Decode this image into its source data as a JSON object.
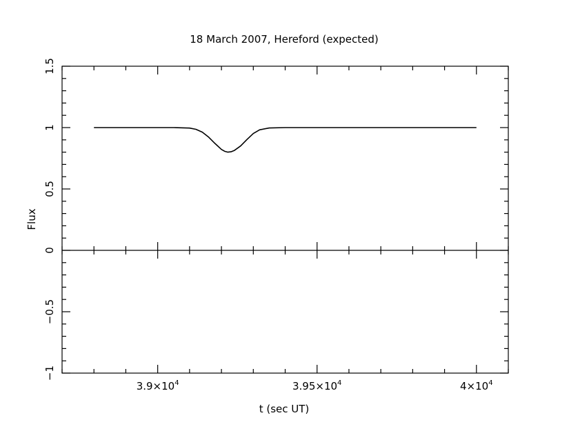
{
  "chart_data": {
    "type": "line",
    "title": "18 March 2007, Hereford (expected)",
    "xlabel": "t (sec UT)",
    "ylabel": "Flux",
    "xlim": [
      38700,
      40100
    ],
    "ylim": [
      -1,
      1.5
    ],
    "x_ticks": [
      {
        "value": 39000,
        "mantissa": "3.9",
        "exp": "4"
      },
      {
        "value": 39500,
        "mantissa": "3.95",
        "exp": "4"
      },
      {
        "value": 40000,
        "mantissa": "4",
        "exp": "4"
      }
    ],
    "x_tick_base": "10",
    "x_minor_step": 100,
    "y_ticks": [
      {
        "value": 1.5,
        "label": "1.5"
      },
      {
        "value": 1,
        "label": "1"
      },
      {
        "value": 0.5,
        "label": "0.5"
      },
      {
        "value": 0,
        "label": "0"
      },
      {
        "value": -0.5,
        "label": "−0.5"
      },
      {
        "value": -1,
        "label": "−1"
      }
    ],
    "y_minor_step": 0.1,
    "zero_line": true,
    "grid": false,
    "series": [
      {
        "x": [
          38800,
          38900,
          39000,
          39050,
          39100,
          39120,
          39140,
          39160,
          39180,
          39200,
          39210,
          39220,
          39230,
          39240,
          39260,
          39280,
          39300,
          39320,
          39350,
          39400,
          39500,
          39600,
          39700,
          39800,
          39900,
          40000
        ],
        "y": [
          1.0,
          1.0,
          1.0,
          1.0,
          0.996,
          0.986,
          0.963,
          0.922,
          0.87,
          0.822,
          0.807,
          0.8,
          0.803,
          0.813,
          0.85,
          0.903,
          0.952,
          0.982,
          0.997,
          1.0,
          1.0,
          1.0,
          1.0,
          1.0,
          1.0,
          1.0
        ],
        "color": "#000000"
      }
    ]
  }
}
